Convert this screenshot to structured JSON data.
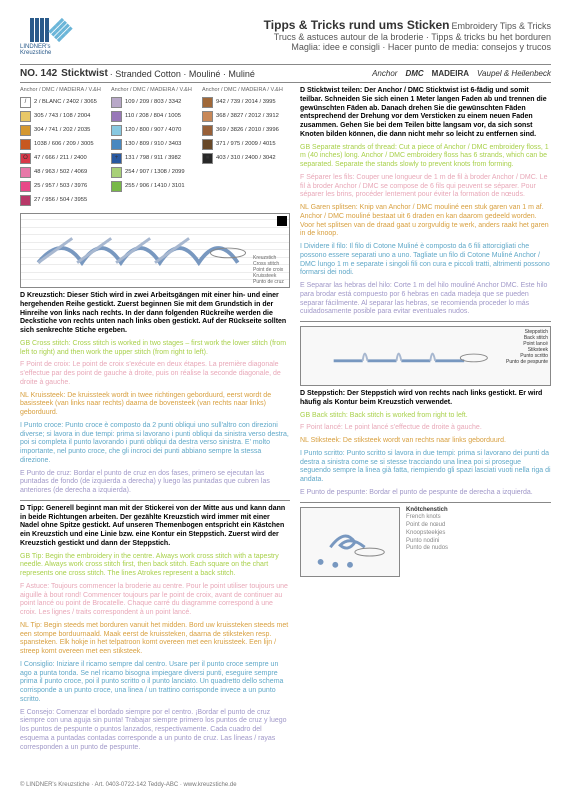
{
  "header": {
    "logo_text": "LINDNER's Kreuzstiche",
    "title_main": "Tipps & Tricks rund ums Sticken",
    "title_main2": "Embroidery Tips & Tricks",
    "sub1": "Trucs & astuces autour de la broderie · Tipps & tricks bu het borduren",
    "sub2": "Maglia: idee e consigli · Hacer punto de media: consejos y trucos"
  },
  "no_line": {
    "no": "NO. 142",
    "name": "Sticktwist",
    "name2": "· Stranded Cotton · Mouliné · Muliné",
    "brands": [
      "Anchor",
      "DMC",
      "MADEIRA",
      "Vaupel & Heilenbeck"
    ]
  },
  "color_header": "Anchor / DMC / MADEIRA / V.&H",
  "colors": {
    "col1": [
      {
        "sym": "/",
        "bg": "#ffffff",
        "code": "2 / BLANC / 2402 / 3065"
      },
      {
        "sym": "",
        "bg": "#e8c868",
        "code": "305 / 743 / 108 / 2004"
      },
      {
        "sym": "",
        "bg": "#d49830",
        "code": "304 / 741 / 202 / 2035"
      },
      {
        "sym": "",
        "bg": "#c85820",
        "code": "1038 / 606 / 209 / 3005"
      },
      {
        "sym": "O",
        "bg": "#d83848",
        "code": "47 / 666 / 211 / 2400"
      },
      {
        "sym": "",
        "bg": "#e878a8",
        "code": "48 / 963 / 502 / 4069"
      },
      {
        "sym": "",
        "bg": "#e84888",
        "code": "25 / 957 / 503 / 3976"
      },
      {
        "sym": "",
        "bg": "#b83868",
        "code": "27 / 956 / 504 / 3955"
      }
    ],
    "col2": [
      {
        "sym": "",
        "bg": "#b8a8c8",
        "code": "109 / 209 / 803 / 3342"
      },
      {
        "sym": "",
        "bg": "#9878b8",
        "code": "110 / 208 / 804 / 1005"
      },
      {
        "sym": "",
        "bg": "#88c8e0",
        "code": "120 / 800 / 907 / 4070"
      },
      {
        "sym": "",
        "bg": "#4888c0",
        "code": "130 / 809 / 910 / 3403"
      },
      {
        "sym": "+",
        "bg": "#2858a0",
        "code": "131 / 798 / 911 / 3982"
      },
      {
        "sym": "",
        "bg": "#a8d078",
        "code": "254 / 907 / 1308 / 2099"
      },
      {
        "sym": "",
        "bg": "#78b848",
        "code": "255 / 906 / 1410 / 3101"
      }
    ],
    "col3": [
      {
        "sym": "",
        "bg": "#a06838",
        "code": "942 / 739 / 2014 / 3995"
      },
      {
        "sym": "",
        "bg": "#c88858",
        "code": "368 / 3827 / 2012 / 3912"
      },
      {
        "sym": "",
        "bg": "#986038",
        "code": "369 / 3826 / 2010 / 3996"
      },
      {
        "sym": "",
        "bg": "#684828",
        "code": "371 / 975 / 2009 / 4015"
      },
      {
        "sym": "■",
        "bg": "#282828",
        "code": "403 / 310 / 2400 / 3042"
      }
    ]
  },
  "kreuzstich": {
    "caption": "Kreuzstich\nCross stitch\nPoint de croix\nKruissteek\nPunto de cruz",
    "d": "D Kreuzstich: Dieser Stich wird in zwei Arbeitsgängen mit einer hin- und einer hergehenden Reihe gestickt. Zuerst beginnen Sie mit dem Grundstich in der Hinreihe von links nach rechts. In der dann folgenden Rückreihe werden die Deckstiche von rechts unten nach links oben gestickt. Auf der Rückseite sollten sich senkrechte Stiche ergeben.",
    "gb": "GB Cross stitch: Cross stitch is worked in two stages – first work the lower stitch (from left to right) and then work the upper stitch (from right to left).",
    "f": "F Point de croix: Le point de croix s'exécute en deux étapes. La première diagonale s'effectue par des point de gauche à droite, puis on réalise la seconde diagonale, de droite à gauche.",
    "nl": "NL Kruissteek: De kruissteek wordt in twee richtingen geborduurd, eerst wordt de basissteek (van links naar rechts) daarna de bovensteek (van rechts naar links) geborduurd.",
    "i": "I Punto croce: Punto croce è composto da 2 punti obliqui uno sull'altro con direzioni diverse; si lavora in due tempi: prima si lavorano i punti obliqui da sinistra verso destra, poi si completa il punto lavorando i punti obliqui da destra verso sinistra. E' molto importante, nel punto croce, che gli incroci dei punti abbiano sempre la stessa direzione.",
    "e": "E Punto de cruz: Bordar el punto de cruz en dos fases, primero se ejecutan las puntadas de fondo (de izquierda a derecha) y luego las puntadas que cubren las anteriores (de derecha a izquierda)."
  },
  "tipp": {
    "d": "D Tipp: Generell beginnt man mit der Stickerei von der Mitte aus und kann dann in beide Richtungen arbeiten. Der gezählte Kreuzstich wird immer mit einer Nadel ohne Spitze gestickt. Auf unseren Themenbogen entspricht ein Kästchen ein Kreuzstich und eine Linie bzw. eine Kontur ein Steppstich. Zuerst wird der Kreuzstich gestickt und dann der Steppstich.",
    "gb": "GB Tip: Begin the embroidery in the centre. Always work cross stitch with a tapestry needle. Always work cross stitch first, then back stitch. Each square on the chart represents one cross stitch. The lines Atrokes represent a back stitch.",
    "f": "F Astuce: Toujours commencer la broderie au centre. Pour le point utiliser toujours une aiguille à bout rond! Commencer toujours par le point de croix, avant de continuer au point lancé ou point de Brocatelle. Chaque carré du diagramme correspond à une croix. Les lignes / traits correspondent à un point lancé.",
    "nl": "NL Tip: Begin steeds met borduren vanuit het midden. Bord uw kruissteken steeds met een stompe borduurnaald. Maak eerst de kruissteken, daarna de stiksteken resp. spansteken. Elk hokje in het telpatroon komt overeen met een kruissteek. Een lijn / streep komt overeen met een stiksteek.",
    "i": "I Consiglio: Iniziare il ricamo sempre dal centro. Usare per il punto croce sempre un ago a punta tonda. Se nel ricamo bisogna impiegare diversi punti, eseguire sempre prima il punto croce, poi il punto scritto o il punto lanciato. Un quadretto dello schema corrisponde a un punto croce, una linea / un trattino corrisponde invece a un punto scritto.",
    "e": "E Consejo: Comenzar el bordado siempre por el centro. ¡Bordar el punto de cruz siempre con una aguja sin punta! Trabajar siempre primero los puntos de cruz y luego los puntos de pespunte o puntos lanzados, respectivamente. Cada cuadro del esquema a puntadas contadas corresponde a un punto de cruz. Las líneas / rayas corresponden a un punto de pespunte."
  },
  "sticktwist": {
    "d": "D Sticktwist teilen: Der Anchor / DMC Sticktwist ist 6-fädig und somit teilbar. Schneiden Sie sich einen 1 Meter langen Faden ab und trennen die gewünschten Fäden ab. Danach drehen Sie die gewünschten Fäden entsprechend der Drehung vor dem Versticken zu einem neuen Faden zusammen. Gehen Sie bei dem Teilen bitte langsam vor, da sich sonst Knoten bilden können, die dann nicht mehr so leicht zu entfernen sind.",
    "gb": "GB Separate strands of thread: Cut a piece of Anchor / DMC embroidery floss, 1 m (40 inches) long. Anchor / DMC embroidery floss has 6 strands, which can be separated. Separate the stands slowly to prevent knots from forming.",
    "f": "F Séparer les fils: Couper une longueur de 1 m de fil à broder Anchor / DMC. Le fil à broder Anchor / DMC se compose de 6 fils qui peuvent se séparer. Pour séparer les brins, procéder lentement pour éviter la formation de nœuds.",
    "nl": "NL Garen splitsen: Knip van Anchor / DMC mouliné een stuk garen van 1 m af. Anchor / DMC mouliné bestaat uit 6 draden en kan daarom gedeeld worden. Voor het splitsen van de draad gaat u zorgvuldig te werk, anders raakt het garen in de knoop.",
    "i": "I Dividere il filo: Il filo di Cotone Muliné è composto da 6 fili attorcigliati che possono essere separati uno a uno. Tagliate un filo di Cotone Muliné Anchor / DMC lungo 1 m e separate i singoli fili con cura e piccoli tratti, altrimenti possono formarsi dei nodi.",
    "e": "E Separar las hebras del hilo: Corte 1 m del hilo mouliné Anchor DMC. Este hilo para brodar está compuesto por 6 hebras en cada madeja que se pueden separar fácilmente. Al separar las hebras, se recomienda proceder lo más cuidadosamente posible para evitar eventuales nudos."
  },
  "steppstich": {
    "caption": "Steppstich\nBack stitch\nPoint lancé\nStiksteek\nPunto scritto\nPunto de pespunte",
    "d": "D Steppstich: Der Steppstich wird von rechts nach links gestickt. Er wird häufig als Kontur beim Kreuzstich verwendet.",
    "gb": "GB Back stitch: Back stitch is worked from right to left.",
    "f": "F Point lancé: Le point lancé s'effectue de droite à gauche.",
    "nl": "NL Stiksteek: De stiksteek wordt van rechts naar links geborduurd.",
    "i": "I Punto scritto: Punto scritto si lavora in due tempi: prima si lavorano dei punti da destra a sinistra come se si stesse tracciando una linea poi si prosegue seguendo sempre la linea già fatta, riempiendo gli spazi lasciati vuoti nella riga di andata.",
    "e": "E Punto de pespunte: Bordar el punto de pespunte de derecha a izquierda."
  },
  "knot": {
    "title": "Knötchenstich",
    "labels": "French knots\nPoint de nœud\nKnoopsteekjes\nPunto nodini\nPunto de nudos"
  },
  "footer": "© LINDNER's Kreuzstiche · Art. 0403-0722-142 Teddy-ABC · www.kreuzstiche.de"
}
